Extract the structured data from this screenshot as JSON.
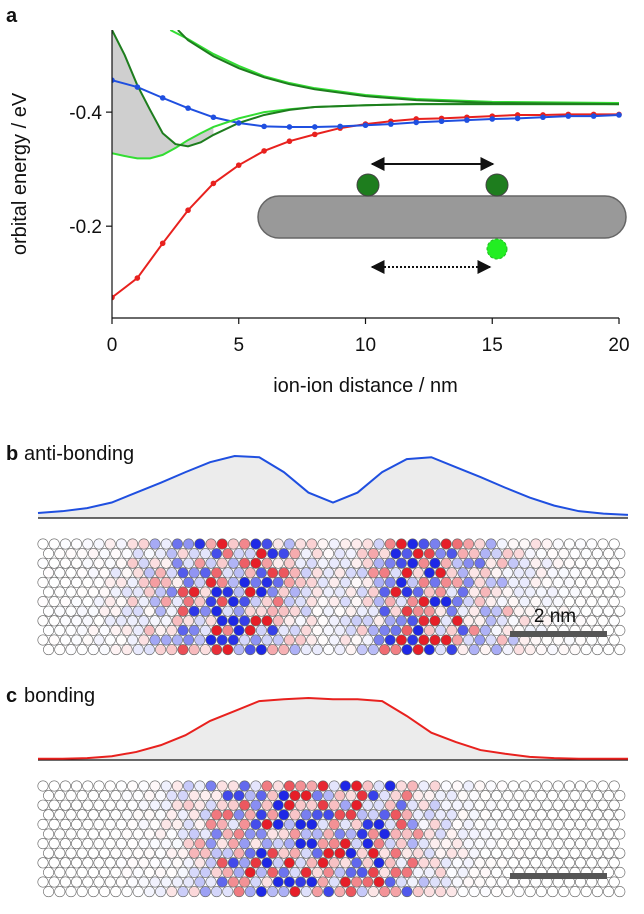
{
  "chart_data": [
    {
      "type": "line",
      "panel_label": "a",
      "x_label": "ion-ion distance / nm",
      "y_label": "orbital energy / eV",
      "xlim": [
        0,
        20
      ],
      "xticks": [
        0,
        5,
        10,
        15,
        20
      ],
      "ylim": [
        -0.039,
        -0.544
      ],
      "yticks": [
        -0.4,
        -0.2
      ],
      "series": [
        {
          "color": "#e8211e",
          "markers": true,
          "x": [
            0,
            1,
            2,
            3,
            4,
            5,
            6,
            7,
            8,
            9,
            10,
            11,
            12,
            13,
            14,
            15,
            16,
            17,
            18,
            19,
            20
          ],
          "values": [
            -0.075,
            -0.109,
            -0.17,
            -0.228,
            -0.275,
            -0.307,
            -0.332,
            -0.349,
            -0.361,
            -0.372,
            -0.379,
            -0.384,
            -0.388,
            -0.389,
            -0.391,
            -0.393,
            -0.395,
            -0.395,
            -0.396,
            -0.396,
            -0.396
          ]
        },
        {
          "color": "#1f4fe0",
          "markers": true,
          "x": [
            0,
            1,
            2,
            3,
            4,
            5,
            6,
            7,
            8,
            9,
            10,
            11,
            12,
            13,
            14,
            15,
            16,
            17,
            18,
            19,
            20
          ],
          "values": [
            -0.456,
            -0.444,
            -0.425,
            -0.407,
            -0.391,
            -0.381,
            -0.375,
            -0.374,
            -0.374,
            -0.375,
            -0.377,
            -0.379,
            -0.382,
            -0.384,
            -0.386,
            -0.388,
            -0.389,
            -0.391,
            -0.393,
            -0.393,
            -0.395
          ]
        },
        {
          "color": "#33dd33",
          "markers": false,
          "x": [
            0,
            0.5,
            1,
            1.5,
            2,
            2.5,
            3,
            3.5,
            4,
            5,
            6,
            7,
            8,
            10,
            12,
            15,
            20
          ],
          "values": [
            -0.328,
            -0.323,
            -0.319,
            -0.319,
            -0.325,
            -0.337,
            -0.351,
            -0.363,
            -0.374,
            -0.389,
            -0.4,
            -0.405,
            -0.409,
            -0.412,
            -0.414,
            -0.414,
            -0.414
          ]
        },
        {
          "color": "#1e7d1e",
          "markers": false,
          "x": [
            0,
            0.5,
            1,
            1.5,
            2,
            2.5,
            3,
            3.5,
            4,
            5,
            6,
            7,
            8,
            10,
            12,
            15,
            20
          ],
          "values": [
            -0.544,
            -0.5,
            -0.447,
            -0.404,
            -0.363,
            -0.344,
            -0.34,
            -0.347,
            -0.36,
            -0.381,
            -0.395,
            -0.404,
            -0.409,
            -0.412,
            -0.414,
            -0.414,
            -0.414
          ]
        },
        {
          "color": "#33dd33",
          "markers": false,
          "x": [
            2.3,
            3,
            4,
            5,
            6,
            7,
            8,
            10,
            12,
            15,
            20
          ],
          "values": [
            -0.544,
            -0.528,
            -0.502,
            -0.481,
            -0.463,
            -0.451,
            -0.442,
            -0.43,
            -0.423,
            -0.418,
            -0.416
          ]
        },
        {
          "color": "#1e7d1e",
          "markers": false,
          "x": [
            2.6,
            3,
            4,
            5,
            6,
            7,
            8,
            10,
            12,
            15,
            20
          ],
          "values": [
            -0.544,
            -0.526,
            -0.498,
            -0.477,
            -0.461,
            -0.449,
            -0.44,
            -0.428,
            -0.421,
            -0.416,
            -0.414
          ]
        }
      ]
    },
    {
      "type": "area",
      "panel_label": "b",
      "title": "anti-bonding",
      "color": "#1f4fe0",
      "scale_bar_label": "2 nm",
      "values": [
        0.08,
        0.11,
        0.16,
        0.25,
        0.41,
        0.57,
        0.74,
        0.9,
        1,
        0.98,
        0.74,
        0.41,
        0.25,
        0.41,
        0.74,
        0.95,
        0.98,
        0.82,
        0.66,
        0.49,
        0.33,
        0.2,
        0.11,
        0.07,
        0.05
      ]
    },
    {
      "type": "area",
      "panel_label": "c",
      "title": "bonding",
      "color": "#e8211e",
      "values": [
        0.02,
        0.02,
        0.03,
        0.06,
        0.13,
        0.24,
        0.4,
        0.63,
        0.79,
        0.95,
        0.98,
        1,
        0.98,
        0.98,
        0.95,
        0.71,
        0.44,
        0.29,
        0.16,
        0.1,
        0.05,
        0.03,
        0.02,
        0.02,
        0.02
      ]
    }
  ]
}
